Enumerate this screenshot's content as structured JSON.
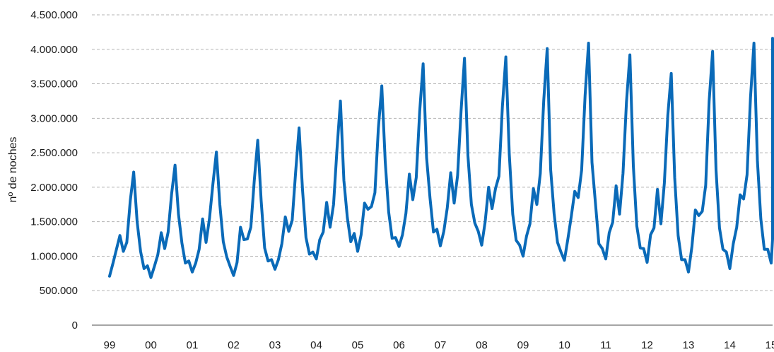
{
  "chart_data": {
    "type": "line",
    "title": "",
    "xlabel": "",
    "ylabel": "nº de noches",
    "ylim": [
      0,
      4500000
    ],
    "yticks": [
      0,
      500000,
      1000000,
      1500000,
      2000000,
      2500000,
      3000000,
      3500000,
      4000000,
      4500000
    ],
    "ytick_labels": [
      "0",
      "500.000",
      "1.000.000",
      "1.500.000",
      "2.000.000",
      "2.500.000",
      "3.000.000",
      "3.500.000",
      "4.000.000",
      "4.500.000"
    ],
    "xtick_labels": [
      "99",
      "00",
      "01",
      "02",
      "03",
      "04",
      "05",
      "06",
      "07",
      "08",
      "09",
      "10",
      "11",
      "12",
      "13",
      "14",
      "15"
    ],
    "grid": true,
    "legend": "none",
    "series_color": "#0a6ab8",
    "x_start": "1999-01",
    "x_end": "2015-10",
    "frequency": "monthly",
    "series": [
      {
        "values": [
          710000,
          900000,
          1100000,
          1300000,
          1070000,
          1200000,
          1800000,
          2220000,
          1500000,
          1070000,
          820000,
          860000,
          690000,
          850000,
          1020000,
          1340000,
          1110000,
          1350000,
          1900000,
          2320000,
          1610000,
          1190000,
          900000,
          930000,
          770000,
          900000,
          1100000,
          1540000,
          1200000,
          1550000,
          2050000,
          2510000,
          1750000,
          1210000,
          990000,
          850000,
          720000,
          910000,
          1420000,
          1240000,
          1250000,
          1420000,
          2100000,
          2680000,
          1800000,
          1120000,
          930000,
          950000,
          810000,
          950000,
          1180000,
          1570000,
          1360000,
          1520000,
          2220000,
          2860000,
          1960000,
          1270000,
          1030000,
          1060000,
          960000,
          1240000,
          1350000,
          1780000,
          1420000,
          1750000,
          2550000,
          3250000,
          2100000,
          1560000,
          1210000,
          1330000,
          1070000,
          1310000,
          1770000,
          1680000,
          1720000,
          1920000,
          2850000,
          3470000,
          2370000,
          1640000,
          1260000,
          1270000,
          1140000,
          1310000,
          1620000,
          2190000,
          1820000,
          2140000,
          3100000,
          3790000,
          2430000,
          1840000,
          1350000,
          1390000,
          1150000,
          1360000,
          1700000,
          2210000,
          1770000,
          2170000,
          3100000,
          3870000,
          2460000,
          1750000,
          1480000,
          1360000,
          1160000,
          1500000,
          2000000,
          1690000,
          1980000,
          2160000,
          3170000,
          3890000,
          2480000,
          1610000,
          1230000,
          1160000,
          1000000,
          1290000,
          1470000,
          1980000,
          1750000,
          2200000,
          3260000,
          4010000,
          2260000,
          1620000,
          1200000,
          1060000,
          940000,
          1250000,
          1580000,
          1940000,
          1850000,
          2250000,
          3330000,
          4090000,
          2360000,
          1770000,
          1180000,
          1110000,
          960000,
          1340000,
          1490000,
          2020000,
          1610000,
          2200000,
          3230000,
          3920000,
          2310000,
          1440000,
          1120000,
          1110000,
          910000,
          1310000,
          1410000,
          1970000,
          1470000,
          2060000,
          3040000,
          3650000,
          2140000,
          1300000,
          950000,
          950000,
          770000,
          1140000,
          1670000,
          1590000,
          1650000,
          2030000,
          3250000,
          3970000,
          2250000,
          1410000,
          1100000,
          1060000,
          820000,
          1180000,
          1420000,
          1890000,
          1830000,
          2180000,
          3300000,
          4090000,
          2390000,
          1540000,
          1100000,
          1100000,
          900000,
          1250000,
          1610000,
          1930000,
          1710000,
          2360000,
          3490000,
          4160000,
          2500000,
          1300000
        ]
      }
    ]
  }
}
